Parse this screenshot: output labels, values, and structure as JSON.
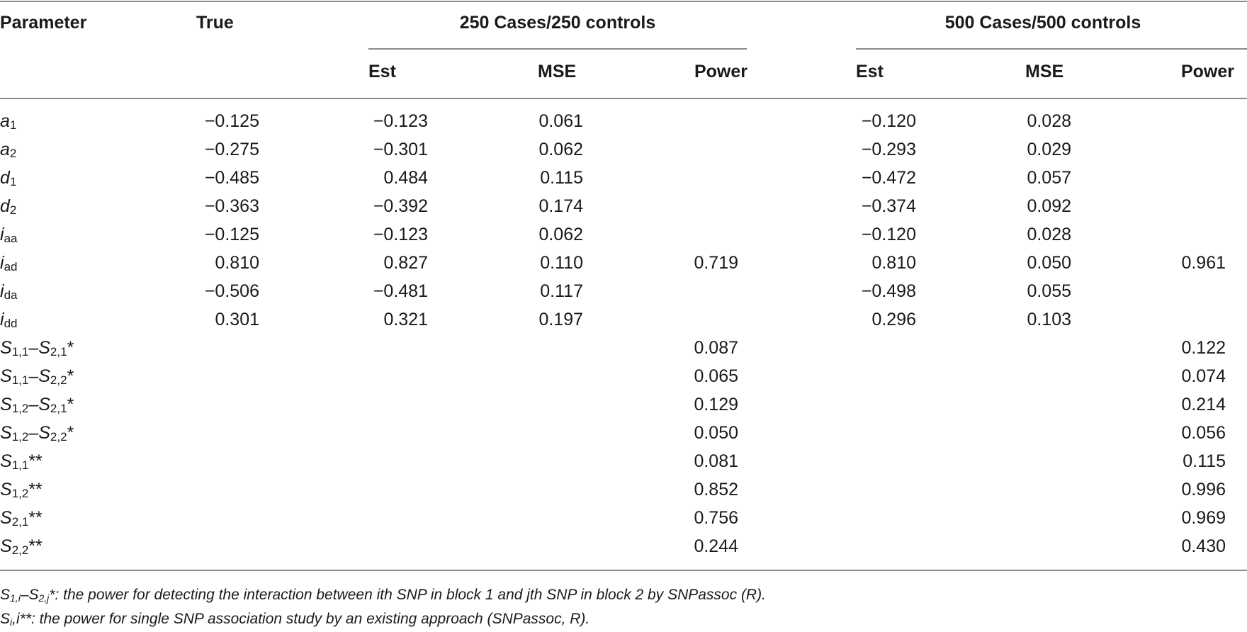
{
  "headers": {
    "parameter": "Parameter",
    "true": "True",
    "group1": "250 Cases/250 controls",
    "group2": "500 Cases/500 controls",
    "est": "Est",
    "mse": "MSE",
    "power": "Power"
  },
  "rows": [
    {
      "param": {
        "b": "a",
        "s": "1",
        "t": ""
      },
      "true": "−0.125",
      "est1": "−0.123",
      "mse1": "0.061",
      "pow1": "",
      "est2": "−0.120",
      "mse2": "0.028",
      "pow2": ""
    },
    {
      "param": {
        "b": "a",
        "s": "2",
        "t": ""
      },
      "true": "−0.275",
      "est1": "−0.301",
      "mse1": "0.062",
      "pow1": "",
      "est2": "−0.293",
      "mse2": "0.029",
      "pow2": ""
    },
    {
      "param": {
        "b": "d",
        "s": "1",
        "t": ""
      },
      "true": "−0.485",
      "est1": "0.484",
      "mse1": "0.115",
      "pow1": "",
      "est2": "−0.472",
      "mse2": "0.057",
      "pow2": ""
    },
    {
      "param": {
        "b": "d",
        "s": "2",
        "t": ""
      },
      "true": "−0.363",
      "est1": "−0.392",
      "mse1": "0.174",
      "pow1": "",
      "est2": "−0.374",
      "mse2": "0.092",
      "pow2": ""
    },
    {
      "param": {
        "b": "i",
        "s": "aa",
        "t": ""
      },
      "true": "−0.125",
      "est1": "−0.123",
      "mse1": "0.062",
      "pow1": "",
      "est2": "−0.120",
      "mse2": "0.028",
      "pow2": ""
    },
    {
      "param": {
        "b": "i",
        "s": "ad",
        "t": ""
      },
      "true": "0.810",
      "est1": "0.827",
      "mse1": "0.110",
      "pow1": "0.719",
      "est2": "0.810",
      "mse2": "0.050",
      "pow2": "0.961"
    },
    {
      "param": {
        "b": "i",
        "s": "da",
        "t": ""
      },
      "true": "−0.506",
      "est1": "−0.481",
      "mse1": "0.117",
      "pow1": "",
      "est2": "−0.498",
      "mse2": "0.055",
      "pow2": ""
    },
    {
      "param": {
        "b": "i",
        "s": "dd",
        "t": ""
      },
      "true": "0.301",
      "est1": "0.321",
      "mse1": "0.197",
      "pow1": "",
      "est2": "0.296",
      "mse2": "0.103",
      "pow2": ""
    },
    {
      "param": {
        "b": "S",
        "s": "1,1",
        "m": "–S",
        "s2": "2,1",
        "t": "*"
      },
      "true": "",
      "est1": "",
      "mse1": "",
      "pow1": "0.087",
      "est2": "",
      "mse2": "",
      "pow2": "0.122"
    },
    {
      "param": {
        "b": "S",
        "s": "1,1",
        "m": "–S",
        "s2": "2,2",
        "t": "*"
      },
      "true": "",
      "est1": "",
      "mse1": "",
      "pow1": "0.065",
      "est2": "",
      "mse2": "",
      "pow2": "0.074"
    },
    {
      "param": {
        "b": "S",
        "s": "1,2",
        "m": "–S",
        "s2": "2,1",
        "t": "*"
      },
      "true": "",
      "est1": "",
      "mse1": "",
      "pow1": "0.129",
      "est2": "",
      "mse2": "",
      "pow2": "0.214"
    },
    {
      "param": {
        "b": "S",
        "s": "1,2",
        "m": "–S",
        "s2": "2,2",
        "t": "*"
      },
      "true": "",
      "est1": "",
      "mse1": "",
      "pow1": "0.050",
      "est2": "",
      "mse2": "",
      "pow2": "0.056"
    },
    {
      "param": {
        "b": "S",
        "s": "1,1",
        "t": "**"
      },
      "true": "",
      "est1": "",
      "mse1": "",
      "pow1": "0.081",
      "est2": "",
      "mse2": "",
      "pow2": "0.115"
    },
    {
      "param": {
        "b": "S",
        "s": "1,2",
        "t": "**"
      },
      "true": "",
      "est1": "",
      "mse1": "",
      "pow1": "0.852",
      "est2": "",
      "mse2": "",
      "pow2": "0.996"
    },
    {
      "param": {
        "b": "S",
        "s": "2,1",
        "t": "**"
      },
      "true": "",
      "est1": "",
      "mse1": "",
      "pow1": "0.756",
      "est2": "",
      "mse2": "",
      "pow2": "0.969"
    },
    {
      "param": {
        "b": "S",
        "s": "2,2",
        "t": "**"
      },
      "true": "",
      "est1": "",
      "mse1": "",
      "pow1": "0.244",
      "est2": "",
      "mse2": "",
      "pow2": "0.430"
    }
  ],
  "footnotes": {
    "fn1": {
      "a": "S",
      "a_sub": "1,i",
      "b": "–S",
      "b_sub": "2,j",
      "text": "*: the power for detecting the interaction between ith SNP in block 1 and jth SNP in block 2 by SNPassoc (R)."
    },
    "fn2": {
      "a": "S",
      "a_sub": "i",
      "text": ",i**: the power for single SNP association study by an existing approach (SNPassoc, R)."
    }
  }
}
